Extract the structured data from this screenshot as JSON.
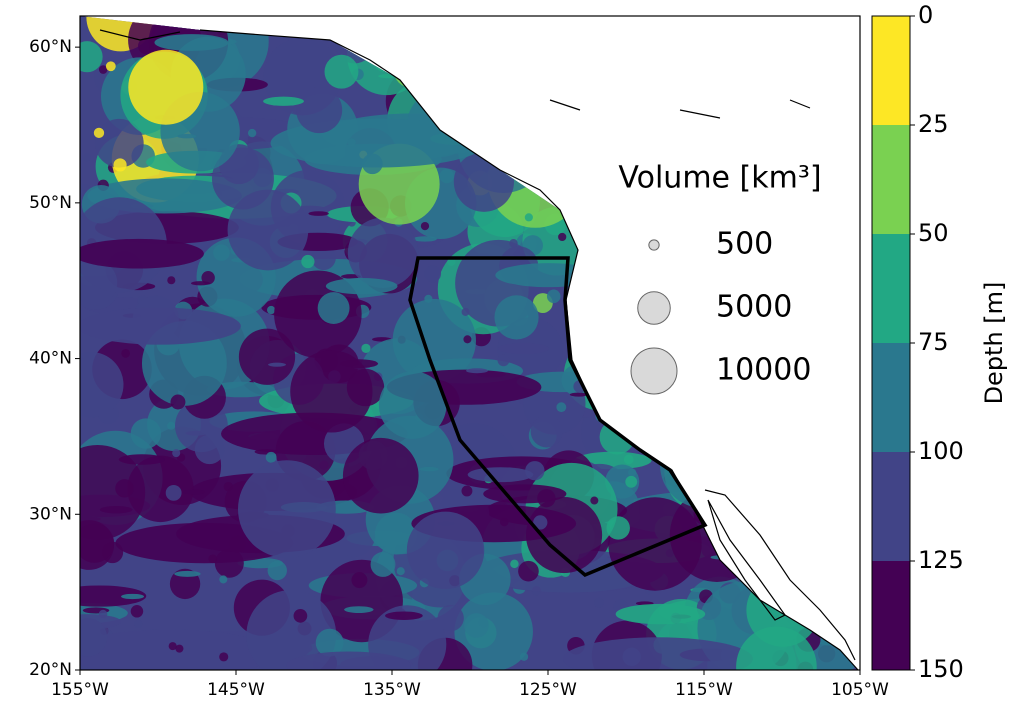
{
  "map": {
    "xlim": [
      -155,
      -105
    ],
    "ylim": [
      20,
      62
    ],
    "xticks": [
      {
        "value": -155,
        "label": "155°W"
      },
      {
        "value": -145,
        "label": "145°W"
      },
      {
        "value": -135,
        "label": "135°W"
      },
      {
        "value": -125,
        "label": "125°W"
      },
      {
        "value": -115,
        "label": "115°W"
      },
      {
        "value": -105,
        "label": "105°W"
      }
    ],
    "yticks": [
      {
        "value": 20,
        "label": "20°N"
      },
      {
        "value": 30,
        "label": "30°N"
      },
      {
        "value": 40,
        "label": "40°N"
      },
      {
        "value": 50,
        "label": "50°N"
      },
      {
        "value": 60,
        "label": "60°N"
      }
    ],
    "legend": {
      "title": "Volume [km³]",
      "sizes": [
        500,
        5000,
        10000
      ],
      "color": "#d9d9d9"
    },
    "colorbar": {
      "label": "Depth [m]",
      "lim": [
        0,
        150
      ],
      "ticks": [
        0,
        25,
        50,
        75,
        100,
        125,
        150
      ],
      "colors": [
        "#fde725",
        "#7ad151",
        "#22a884",
        "#2a788e",
        "#414487",
        "#440154"
      ]
    }
  }
}
